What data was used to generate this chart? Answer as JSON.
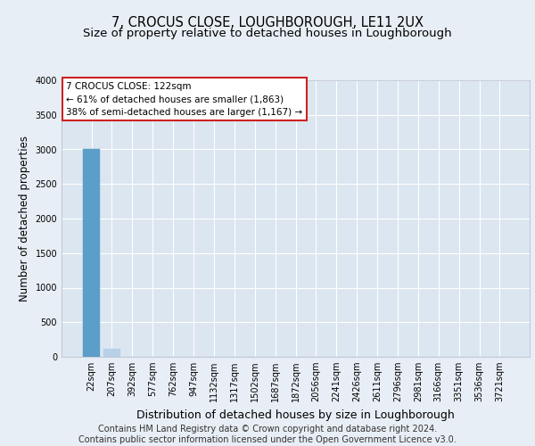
{
  "title": "7, CROCUS CLOSE, LOUGHBOROUGH, LE11 2UX",
  "subtitle": "Size of property relative to detached houses in Loughborough",
  "xlabel": "Distribution of detached houses by size in Loughborough",
  "ylabel": "Number of detached properties",
  "footer_line1": "Contains HM Land Registry data © Crown copyright and database right 2024.",
  "footer_line2": "Contains public sector information licensed under the Open Government Licence v3.0.",
  "annotation_line1": "7 CROCUS CLOSE: 122sqm",
  "annotation_line2": "← 61% of detached houses are smaller (1,863)",
  "annotation_line3": "38% of semi-detached houses are larger (1,167) →",
  "bar_labels": [
    "22sqm",
    "207sqm",
    "392sqm",
    "577sqm",
    "762sqm",
    "947sqm",
    "1132sqm",
    "1317sqm",
    "1502sqm",
    "1687sqm",
    "1872sqm",
    "2056sqm",
    "2241sqm",
    "2426sqm",
    "2611sqm",
    "2796sqm",
    "2981sqm",
    "3166sqm",
    "3351sqm",
    "3536sqm",
    "3721sqm"
  ],
  "bar_values": [
    3000,
    120,
    0,
    0,
    0,
    0,
    0,
    0,
    0,
    0,
    0,
    0,
    0,
    0,
    0,
    0,
    0,
    0,
    0,
    0,
    0
  ],
  "bar_color_normal": "#b8d0e8",
  "bar_color_highlight": "#5b9ec9",
  "highlight_index": 0,
  "ylim": [
    0,
    4000
  ],
  "yticks": [
    0,
    500,
    1000,
    1500,
    2000,
    2500,
    3000,
    3500,
    4000
  ],
  "background_color": "#e8eef5",
  "plot_background_color": "#dce6f0",
  "grid_color": "#ffffff",
  "annotation_box_facecolor": "#ffffff",
  "annotation_box_edgecolor": "#cc2222",
  "title_fontsize": 10.5,
  "subtitle_fontsize": 9.5,
  "xlabel_fontsize": 9,
  "ylabel_fontsize": 8.5,
  "tick_fontsize": 7,
  "annotation_fontsize": 7.5,
  "footer_fontsize": 7
}
